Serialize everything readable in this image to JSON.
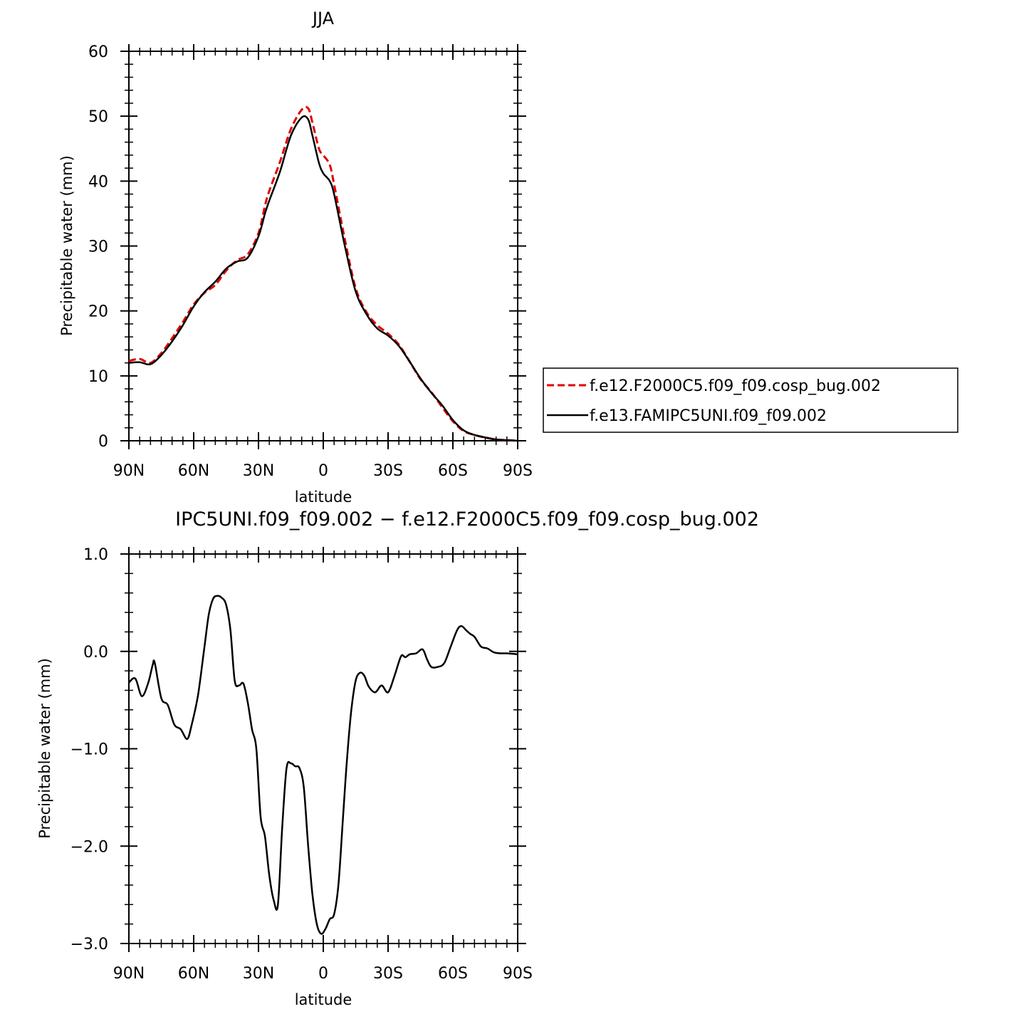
{
  "chart_data": [
    {
      "type": "line",
      "title": "JJA",
      "xlabel": "latitude",
      "ylabel": "Precipitable water (mm)",
      "xlim": [
        90,
        -90
      ],
      "ylim": [
        0,
        60
      ],
      "x_ticks": [
        90,
        60,
        30,
        0,
        -30,
        -60,
        -90
      ],
      "x_tick_labels": [
        "90N",
        "60N",
        "30N",
        "0",
        "30S",
        "60S",
        "90S"
      ],
      "y_ticks": [
        0,
        10,
        20,
        30,
        40,
        50,
        60
      ],
      "y_tick_labels": [
        "0",
        "10",
        "20",
        "30",
        "40",
        "50",
        "60"
      ],
      "legend_position": "right",
      "series": [
        {
          "name": "f.e12.F2000C5.f09_f09.cosp_bug.002",
          "color": "#e00000",
          "style": "dashed",
          "x": [
            90,
            85,
            80,
            75,
            70,
            65,
            60,
            55,
            50,
            45,
            40,
            35,
            30,
            27,
            25,
            20,
            15,
            10,
            7,
            5,
            2,
            0,
            -3,
            -5,
            -10,
            -15,
            -20,
            -25,
            -30,
            -35,
            -40,
            -45,
            -50,
            -55,
            -60,
            -65,
            -70,
            -75,
            -80,
            -85,
            -90
          ],
          "y": [
            12.3,
            12.6,
            12.0,
            13.5,
            15.8,
            18.3,
            21.0,
            22.8,
            24.0,
            26.2,
            27.8,
            28.7,
            32.0,
            36.2,
            38.5,
            43.0,
            48.0,
            51.0,
            51.2,
            49.0,
            45.0,
            44.0,
            42.5,
            39.5,
            31.0,
            23.5,
            19.8,
            17.8,
            16.5,
            14.8,
            12.2,
            9.5,
            7.5,
            5.2,
            3.0,
            1.5,
            0.9,
            0.5,
            0.2,
            0.1,
            0.0
          ]
        },
        {
          "name": "f.e13.FAMIPC5UNI.f09_f09.002",
          "color": "#000000",
          "style": "solid",
          "x": [
            90,
            85,
            80,
            75,
            70,
            65,
            60,
            55,
            50,
            45,
            40,
            35,
            30,
            27,
            25,
            20,
            15,
            10,
            7,
            5,
            2,
            0,
            -3,
            -5,
            -10,
            -15,
            -20,
            -25,
            -30,
            -35,
            -40,
            -45,
            -50,
            -55,
            -60,
            -65,
            -70,
            -75,
            -80,
            -85,
            -90
          ],
          "y": [
            12.0,
            12.1,
            11.8,
            13.2,
            15.3,
            17.8,
            20.7,
            22.9,
            24.5,
            26.5,
            27.6,
            28.2,
            31.5,
            35.0,
            37.0,
            41.5,
            47.0,
            49.8,
            49.5,
            47.0,
            42.8,
            41.2,
            40.0,
            38.0,
            30.0,
            23.0,
            19.5,
            17.3,
            16.2,
            14.6,
            12.2,
            9.6,
            7.4,
            5.5,
            3.2,
            1.6,
            0.9,
            0.5,
            0.2,
            0.1,
            0.0
          ]
        }
      ]
    },
    {
      "type": "line",
      "title": "IPC5UNI.f09_f09.002 − f.e12.F2000C5.f09_f09.cosp_bug.002",
      "xlabel": "latitude",
      "ylabel": "Precipitable water (mm)",
      "xlim": [
        90,
        -90
      ],
      "ylim": [
        -3.0,
        1.0
      ],
      "x_ticks": [
        90,
        60,
        30,
        0,
        -30,
        -60,
        -90
      ],
      "x_tick_labels": [
        "90N",
        "60N",
        "30N",
        "0",
        "30S",
        "60S",
        "90S"
      ],
      "y_ticks": [
        1.0,
        0.0,
        -1.0,
        -2.0,
        -3.0
      ],
      "y_tick_labels": [
        "1.0",
        "0.0",
        "−1.0",
        "−2.0",
        "−3.0"
      ],
      "series": [
        {
          "color": "#000000",
          "style": "solid",
          "x": [
            90,
            87,
            84,
            81,
            79,
            78,
            75,
            72,
            69,
            66,
            63,
            61,
            58,
            55,
            53,
            51,
            49,
            47,
            45,
            43,
            41,
            39,
            37,
            35,
            33,
            31,
            29,
            27,
            25,
            23,
            21,
            19,
            17,
            15,
            13,
            11,
            9,
            7,
            5,
            3,
            1,
            -1,
            -3,
            -5,
            -7,
            -9,
            -11,
            -13,
            -15,
            -17,
            -19,
            -21,
            -24,
            -27,
            -30,
            -33,
            -36,
            -38,
            -40,
            -43,
            -46,
            -48,
            -50,
            -53,
            -56,
            -59,
            -62,
            -64,
            -66,
            -68,
            -70,
            -73,
            -76,
            -79,
            -82,
            -85,
            -90
          ],
          "y": [
            -0.32,
            -0.28,
            -0.46,
            -0.32,
            -0.14,
            -0.12,
            -0.48,
            -0.55,
            -0.75,
            -0.8,
            -0.9,
            -0.76,
            -0.45,
            0.05,
            0.38,
            0.54,
            0.57,
            0.55,
            0.48,
            0.22,
            -0.3,
            -0.35,
            -0.33,
            -0.52,
            -0.8,
            -1.0,
            -1.7,
            -1.9,
            -2.3,
            -2.55,
            -2.6,
            -1.8,
            -1.2,
            -1.15,
            -1.18,
            -1.2,
            -1.4,
            -2.0,
            -2.5,
            -2.8,
            -2.9,
            -2.85,
            -2.75,
            -2.7,
            -2.4,
            -1.75,
            -1.1,
            -0.6,
            -0.3,
            -0.22,
            -0.25,
            -0.36,
            -0.42,
            -0.35,
            -0.42,
            -0.25,
            -0.05,
            -0.06,
            -0.03,
            -0.02,
            0.02,
            -0.08,
            -0.16,
            -0.16,
            -0.12,
            0.05,
            0.22,
            0.26,
            0.22,
            0.18,
            0.15,
            0.05,
            0.03,
            -0.01,
            -0.02,
            -0.02,
            -0.03
          ]
        }
      ]
    }
  ]
}
